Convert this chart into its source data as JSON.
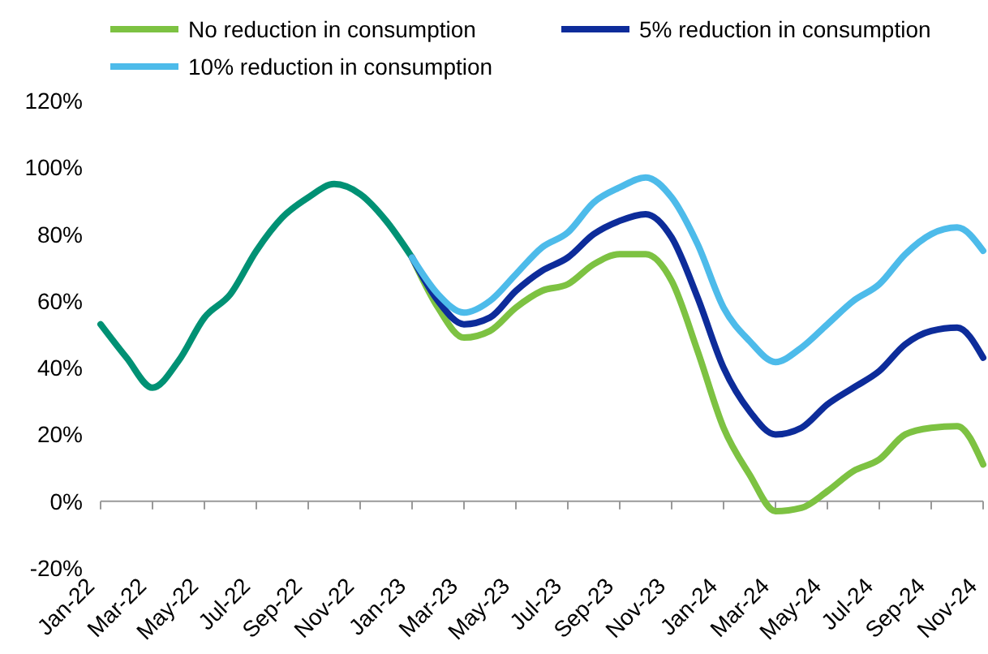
{
  "chart_data": {
    "type": "line",
    "categories": [
      "Jan-22",
      null,
      "Mar-22",
      null,
      "May-22",
      null,
      "Jul-22",
      null,
      "Sep-22",
      null,
      "Nov-22",
      null,
      "Jan-23",
      null,
      "Mar-23",
      null,
      "May-23",
      null,
      "Jul-23",
      null,
      "Sep-23",
      null,
      "Nov-23",
      null,
      "Jan-24",
      null,
      "Mar-24",
      null,
      "May-24",
      null,
      "Jul-24",
      null,
      "Sep-24",
      null,
      "Nov-24"
    ],
    "series": [
      {
        "color": "#009174",
        "values": [
          53,
          43,
          34,
          42,
          55,
          62,
          75,
          85,
          91,
          95,
          92,
          84,
          73,
          null,
          null,
          null,
          null,
          null,
          null,
          null,
          null,
          null,
          null,
          null,
          null,
          null,
          null,
          null,
          null,
          null,
          null,
          null,
          null,
          null,
          null
        ]
      },
      {
        "name": "No reduction in consumption",
        "color": "#7dc242",
        "values": [
          null,
          null,
          null,
          null,
          null,
          null,
          null,
          null,
          null,
          null,
          null,
          null,
          73,
          58,
          49,
          51,
          58,
          63,
          65,
          71,
          74,
          74,
          66,
          45,
          22,
          8,
          -3,
          -2,
          3,
          9,
          12.5,
          20,
          22,
          22.5,
          11
        ]
      },
      {
        "name": "5% reduction in consumption",
        "color": "#0d2c9a",
        "values": [
          null,
          null,
          null,
          null,
          null,
          null,
          null,
          null,
          null,
          null,
          null,
          null,
          73,
          60,
          53,
          55,
          63,
          69,
          73,
          80,
          84,
          86,
          79,
          61,
          40,
          27,
          20,
          22,
          29,
          34,
          39,
          47,
          51,
          52,
          43
        ]
      },
      {
        "name": "10% reduction in consumption",
        "color": "#4dbbea",
        "values": [
          null,
          null,
          null,
          null,
          null,
          null,
          null,
          null,
          null,
          null,
          null,
          null,
          73,
          62,
          56.5,
          60,
          68,
          76,
          80.5,
          89.5,
          94,
          97,
          91,
          77,
          58,
          48,
          41.7,
          46,
          53,
          60,
          65,
          74,
          80,
          82,
          75
        ]
      }
    ],
    "ylim": [
      -20,
      120
    ],
    "yticks": [
      {
        "value": -20,
        "label": "-20%"
      },
      {
        "value": 0,
        "label": "0%"
      },
      {
        "value": 20,
        "label": "20%"
      },
      {
        "value": 40,
        "label": "40%"
      },
      {
        "value": 60,
        "label": "60%"
      },
      {
        "value": 80,
        "label": "80%"
      },
      {
        "value": 100,
        "label": "100%"
      },
      {
        "value": 120,
        "label": "120%"
      }
    ],
    "legend": "top",
    "marker": "none",
    "line_style": "solid"
  }
}
